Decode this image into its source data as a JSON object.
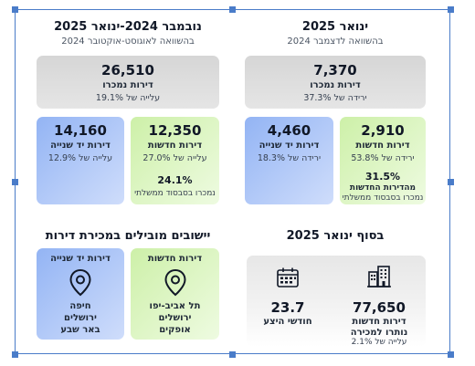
{
  "left": {
    "title": "נובמבר 2024-ינואר 2025",
    "subtitle": "בהשוואה לאוגוסט-אוקטובר 2024",
    "total": {
      "value": "26,510",
      "label": "דירות נמכרו",
      "change": "עלייה של 19.1%"
    },
    "secondhand": {
      "value": "14,160",
      "label": "דירות יד שנייה",
      "change": "עלייה של 12.9%"
    },
    "new": {
      "value": "12,350",
      "label": "דירות חדשות",
      "change": "עלייה של 27.0%",
      "subsidy_pct": "24.1%",
      "subsidy_label": "נמכרו בסבסוד ממשלתי"
    }
  },
  "right": {
    "title": "ינואר 2025",
    "subtitle": "בהשוואה לדצמבר 2024",
    "total": {
      "value": "7,370",
      "label": "דירות נמכרו",
      "change": "ירידה של 37.3%"
    },
    "secondhand": {
      "value": "4,460",
      "label": "דירות יד שנייה",
      "change": "ירידה של 18.3%"
    },
    "new": {
      "value": "2,910",
      "label": "דירות חדשות",
      "change": "ירידה של 53.8%",
      "subsidy_pct": "31.5%",
      "subsidy_label1": "מהדירות החדשות",
      "subsidy_label2": "נמכרו בסבסוד ממשלתי"
    }
  },
  "leading": {
    "title": "יישובים מובילים במכירת דירות",
    "secondhand": {
      "heading": "דירות יד שנייה",
      "cities": [
        "חיפה",
        "ירושלים",
        "באר שבע"
      ]
    },
    "new": {
      "heading": "דירות חדשות",
      "cities": [
        "תל אביב-יפו",
        "ירושלים",
        "אופקים"
      ]
    }
  },
  "end": {
    "title": "בסוף ינואר 2025",
    "supply": {
      "value": "23.7",
      "label": "חודשי היצע"
    },
    "unsold": {
      "value": "77,650",
      "label1": "דירות חדשות",
      "label2": "נותרו למכירה",
      "change": "עלייה של 2.1%"
    }
  }
}
